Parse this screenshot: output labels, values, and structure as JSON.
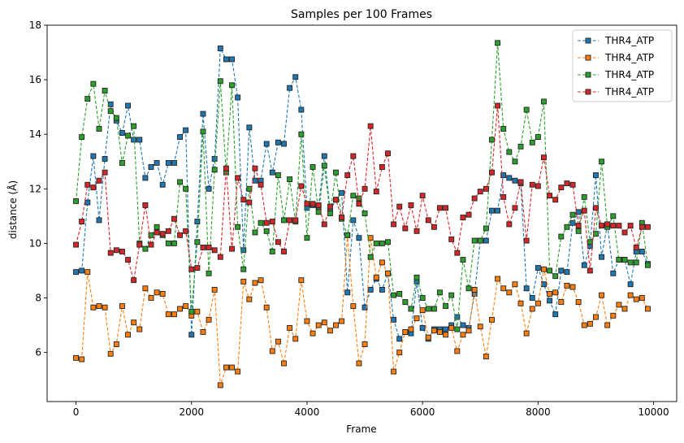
{
  "chart_data": {
    "type": "line",
    "title": "Samples per 100 Frames",
    "xlabel": "Frame",
    "ylabel": "distance (Å)",
    "xlim": [
      -500,
      10400
    ],
    "ylim": [
      4.2,
      18
    ],
    "xticks": [
      0,
      2000,
      4000,
      6000,
      8000,
      10000
    ],
    "yticks": [
      6,
      8,
      10,
      12,
      14,
      16,
      18
    ],
    "grid": false,
    "legend_position": "top-right",
    "marker": "square",
    "linestyle": "dashed",
    "x": [
      0,
      100,
      200,
      300,
      400,
      500,
      600,
      700,
      800,
      900,
      1000,
      1100,
      1200,
      1300,
      1400,
      1500,
      1600,
      1700,
      1800,
      1900,
      2000,
      2100,
      2200,
      2300,
      2400,
      2500,
      2600,
      2700,
      2800,
      2900,
      3000,
      3100,
      3200,
      3300,
      3400,
      3500,
      3600,
      3700,
      3800,
      3900,
      4000,
      4100,
      4200,
      4300,
      4400,
      4500,
      4600,
      4700,
      4800,
      4900,
      5000,
      5100,
      5200,
      5300,
      5400,
      5500,
      5600,
      5700,
      5800,
      5900,
      6000,
      6100,
      6200,
      6300,
      6400,
      6500,
      6600,
      6700,
      6800,
      6900,
      7000,
      7100,
      7200,
      7300,
      7400,
      7500,
      7600,
      7700,
      7800,
      7900,
      8000,
      8100,
      8200,
      8300,
      8400,
      8500,
      8600,
      8700,
      8800,
      8900,
      9000,
      9100,
      9200,
      9300,
      9400,
      9500,
      9600,
      9700,
      9800,
      9900
    ],
    "series": [
      {
        "name": "THR4_ATP",
        "color": "#1f77b4",
        "values": [
          8.95,
          9.0,
          11.5,
          13.2,
          10.85,
          13.1,
          15.1,
          14.5,
          14.05,
          15.05,
          13.8,
          13.8,
          12.4,
          12.8,
          12.95,
          12.15,
          12.95,
          12.95,
          13.9,
          14.15,
          6.65,
          10.8,
          14.75,
          12.0,
          13.1,
          17.15,
          16.75,
          16.75,
          15.35,
          9.75,
          14.25,
          12.3,
          12.3,
          13.65,
          12.6,
          13.7,
          13.65,
          15.7,
          16.1,
          14.9,
          11.3,
          11.4,
          11.35,
          13.2,
          11.2,
          11.6,
          11.85,
          8.2,
          10.85,
          10.2,
          7.65,
          8.3,
          8.7,
          8.3,
          8.9,
          7.2,
          6.5,
          6.75,
          6.7,
          8.6,
          6.9,
          6.5,
          6.85,
          6.85,
          6.85,
          7.0,
          7.3,
          7.0,
          6.9,
          8.15,
          10.1,
          10.1,
          11.2,
          11.2,
          12.5,
          12.4,
          12.3,
          12.2,
          8.35,
          8.0,
          9.1,
          8.5,
          7.9,
          7.4,
          9.0,
          8.95,
          10.75,
          11.15,
          9.2,
          9.9,
          12.5,
          9.5,
          10.7,
          8.9,
          9.4,
          9.4,
          8.5,
          9.7,
          9.7,
          9.25
        ]
      },
      {
        "name": "THR4_ATP",
        "color": "#ff7f0e",
        "values": [
          5.8,
          5.75,
          8.95,
          7.65,
          7.7,
          7.65,
          5.95,
          6.3,
          7.7,
          6.65,
          7.1,
          6.85,
          8.35,
          8.0,
          8.2,
          8.15,
          7.4,
          7.4,
          7.6,
          7.7,
          7.35,
          7.5,
          6.75,
          7.2,
          8.3,
          4.8,
          5.45,
          5.45,
          5.3,
          8.6,
          7.95,
          8.55,
          8.65,
          7.65,
          6.05,
          6.4,
          5.6,
          6.9,
          6.5,
          8.65,
          7.15,
          6.7,
          7.0,
          7.1,
          6.8,
          7.0,
          7.15,
          10.3,
          7.7,
          5.6,
          6.3,
          10.2,
          8.75,
          9.3,
          8.9,
          5.3,
          6.0,
          6.75,
          6.85,
          7.25,
          7.55,
          6.55,
          6.8,
          6.75,
          6.65,
          6.9,
          6.05,
          6.65,
          6.8,
          8.3,
          6.95,
          5.85,
          7.2,
          8.7,
          8.35,
          8.2,
          8.5,
          7.8,
          6.7,
          7.6,
          7.8,
          9.05,
          8.15,
          8.2,
          7.85,
          8.45,
          8.4,
          7.85,
          7.0,
          7.05,
          7.3,
          8.1,
          7.0,
          7.35,
          7.75,
          7.6,
          8.1,
          7.95,
          8.0,
          7.6
        ]
      },
      {
        "name": "THR4_ATP",
        "color": "#2ca02c",
        "values": [
          11.55,
          13.9,
          15.3,
          15.85,
          14.2,
          15.6,
          14.85,
          14.6,
          12.95,
          13.95,
          14.3,
          10.0,
          9.8,
          10.3,
          10.6,
          10.3,
          10.0,
          10.0,
          12.25,
          12.0,
          7.5,
          10.05,
          14.1,
          8.9,
          12.7,
          15.95,
          12.6,
          15.8,
          10.6,
          9.05,
          12.0,
          10.4,
          10.75,
          10.45,
          9.7,
          12.5,
          10.85,
          12.35,
          10.8,
          14.0,
          10.2,
          12.8,
          11.15,
          12.85,
          11.1,
          12.6,
          10.9,
          10.3,
          11.75,
          11.65,
          11.1,
          9.5,
          10.0,
          10.0,
          10.05,
          8.1,
          8.15,
          7.85,
          7.6,
          8.75,
          8.0,
          7.6,
          7.6,
          8.2,
          7.7,
          8.1,
          6.85,
          9.4,
          8.35,
          10.1,
          10.1,
          10.55,
          13.8,
          17.35,
          14.2,
          13.35,
          13.0,
          13.55,
          14.9,
          13.7,
          13.9,
          15.2,
          9.0,
          8.8,
          10.25,
          10.6,
          11.05,
          10.45,
          11.7,
          10.05,
          10.35,
          13.0,
          10.6,
          11.0,
          9.4,
          9.4,
          9.3,
          9.3,
          10.75,
          9.2
        ]
      },
      {
        "name": "THR4_ATP",
        "color": "#d62728",
        "values": [
          9.95,
          10.8,
          12.15,
          12.05,
          12.3,
          12.6,
          9.65,
          9.75,
          9.7,
          9.4,
          8.65,
          9.95,
          11.4,
          9.95,
          10.4,
          10.35,
          10.45,
          10.9,
          10.3,
          10.45,
          9.05,
          9.1,
          9.85,
          9.85,
          9.75,
          9.5,
          12.75,
          9.8,
          12.4,
          11.6,
          11.5,
          12.75,
          12.15,
          10.75,
          10.8,
          10.05,
          9.7,
          10.85,
          10.85,
          12.1,
          11.45,
          11.45,
          11.4,
          10.7,
          11.35,
          11.6,
          10.95,
          12.5,
          13.2,
          11.45,
          12.0,
          14.3,
          11.9,
          12.8,
          13.3,
          10.7,
          11.35,
          10.55,
          11.4,
          10.45,
          11.75,
          10.85,
          10.6,
          11.3,
          11.3,
          10.15,
          9.65,
          10.95,
          11.05,
          11.65,
          11.9,
          12.0,
          12.6,
          15.05,
          11.7,
          10.7,
          11.3,
          12.25,
          10.1,
          12.15,
          12.1,
          13.15,
          11.75,
          11.6,
          12.05,
          12.2,
          12.15,
          10.65,
          11.2,
          9.0,
          11.3,
          10.65,
          10.7,
          10.65,
          10.65,
          10.4,
          10.65,
          9.85,
          10.6,
          10.6
        ]
      }
    ]
  }
}
